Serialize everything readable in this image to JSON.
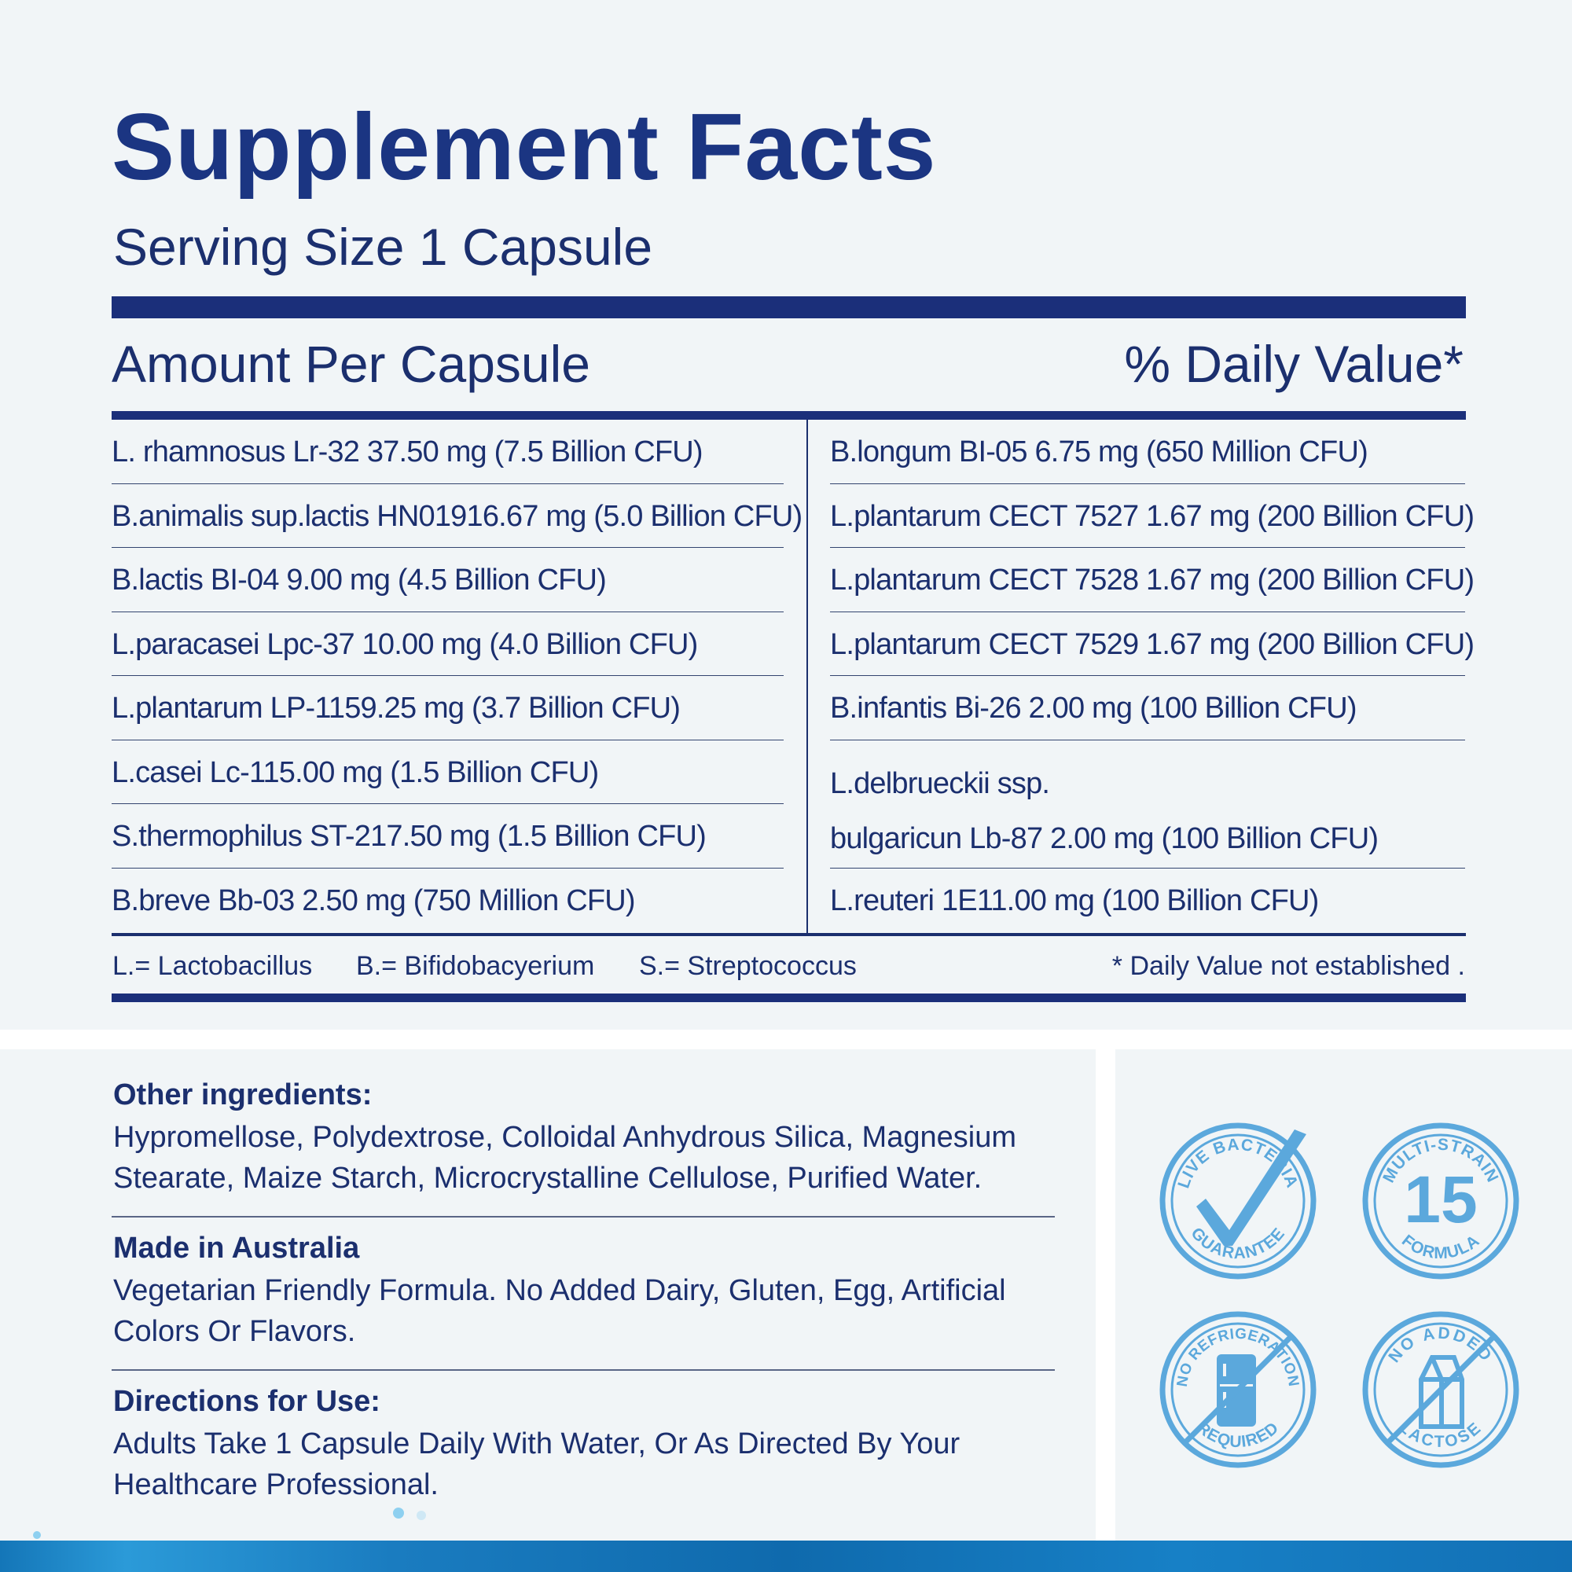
{
  "header": {
    "title": "Supplement Facts",
    "serving": "Serving Size 1 Capsule"
  },
  "table": {
    "amount_label": "Amount Per Capsule",
    "dv_label": "% Daily Value*",
    "left_rows": [
      "L. rhamnosus Lr-32 37.50 mg (7.5 Billion CFU)",
      "B.animalis sup.lactis HN01916.67 mg (5.0 Billion CFU)",
      "B.lactis BI-04 9.00 mg (4.5 Billion CFU)",
      "L.paracasei Lpc-37 10.00 mg (4.0 Billion CFU)",
      "L.plantarum LP-1159.25 mg (3.7 Billion CFU)",
      "L.casei Lc-115.00 mg (1.5 Billion CFU)",
      "S.thermophilus ST-217.50 mg (1.5 Billion CFU)",
      "B.breve Bb-03 2.50 mg (750 Million CFU)"
    ],
    "right_rows": [
      "B.longum BI-05 6.75 mg (650 Million CFU)",
      "L.plantarum CECT 7527 1.67 mg (200 Billion CFU)",
      "L.plantarum CECT 7528 1.67 mg (200 Billion CFU)",
      "L.plantarum CECT 7529 1.67 mg (200 Billion CFU)",
      "B.infantis Bi-26 2.00 mg (100 Billion CFU)",
      "L.delbrueckii ssp.",
      "bulgaricun Lb-87 2.00 mg (100 Billion CFU)",
      "L.reuteri 1E11.00 mg (100 Billion CFU)"
    ]
  },
  "legend": {
    "l": "L.= Lactobacillus",
    "b": "B.= Bifidobacyerium",
    "s": "S.= Streptococcus",
    "note": "* Daily Value not established ."
  },
  "info": {
    "other_head": "Other ingredients:",
    "other_body": "Hypromellose, Polydextrose, Colloidal Anhydrous Silica, Magnesium Stearate, Maize Starch, Microcrystalline Cellulose, Purified Water.",
    "made_head": "Made in Australia",
    "made_body": "Vegetarian Friendly Formula. No Added Dairy, Gluten, Egg, Artificial Colors Or Flavors.",
    "dir_head": "Directions for Use:",
    "dir_body": "Adults Take 1 Capsule Daily With Water, Or As Directed By Your Healthcare Professional."
  },
  "badges": {
    "live_top": "LIVE BACTERIA",
    "live_bottom": "GUARANTEE",
    "multi_top": "MULTI-STRAIN",
    "multi_number": "15",
    "multi_bottom": "FORMULA",
    "fridge_top": "NO REFRIGERATION",
    "fridge_bottom": "REQUIRED",
    "lactose_top": "NO ADDED",
    "lactose_bottom": "LACTOSE",
    "badge_color": "#5ba8dc",
    "badge_icons": [
      "checkmark-icon",
      "fridge-icon",
      "milk-carton-icon"
    ]
  },
  "colors": {
    "navy": "#1b2f6e",
    "title_blue": "#1b3582",
    "background": "#f1f5f7",
    "strip_blue": "#1476b8"
  }
}
